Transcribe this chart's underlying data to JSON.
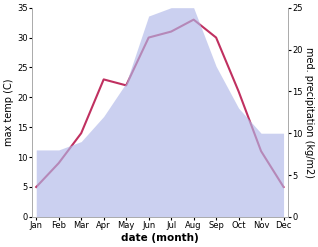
{
  "months": [
    "Jan",
    "Feb",
    "Mar",
    "Apr",
    "May",
    "Jun",
    "Jul",
    "Aug",
    "Sep",
    "Oct",
    "Nov",
    "Dec"
  ],
  "temp_values": [
    5,
    9,
    14,
    23,
    22,
    30,
    31,
    33,
    30,
    21,
    11,
    5
  ],
  "precip_values": [
    8,
    8,
    9,
    12,
    16,
    24,
    25,
    25,
    18,
    13,
    10,
    10
  ],
  "temp_color": "#c03060",
  "precip_fill_color": "#b0b8e8",
  "precip_fill_alpha": 0.65,
  "xlabel": "date (month)",
  "ylabel_left": "max temp (C)",
  "ylabel_right": "med. precipitation (kg/m2)",
  "ylim_left": [
    0,
    35
  ],
  "ylim_right": [
    0,
    25
  ],
  "yticks_left": [
    0,
    5,
    10,
    15,
    20,
    25,
    30,
    35
  ],
  "yticks_right": [
    0,
    5,
    10,
    15,
    20,
    25
  ],
  "background_color": "#ffffff",
  "line_width": 1.5,
  "tick_fontsize": 6.0,
  "label_fontsize": 7.0,
  "xlabel_fontsize": 7.5
}
